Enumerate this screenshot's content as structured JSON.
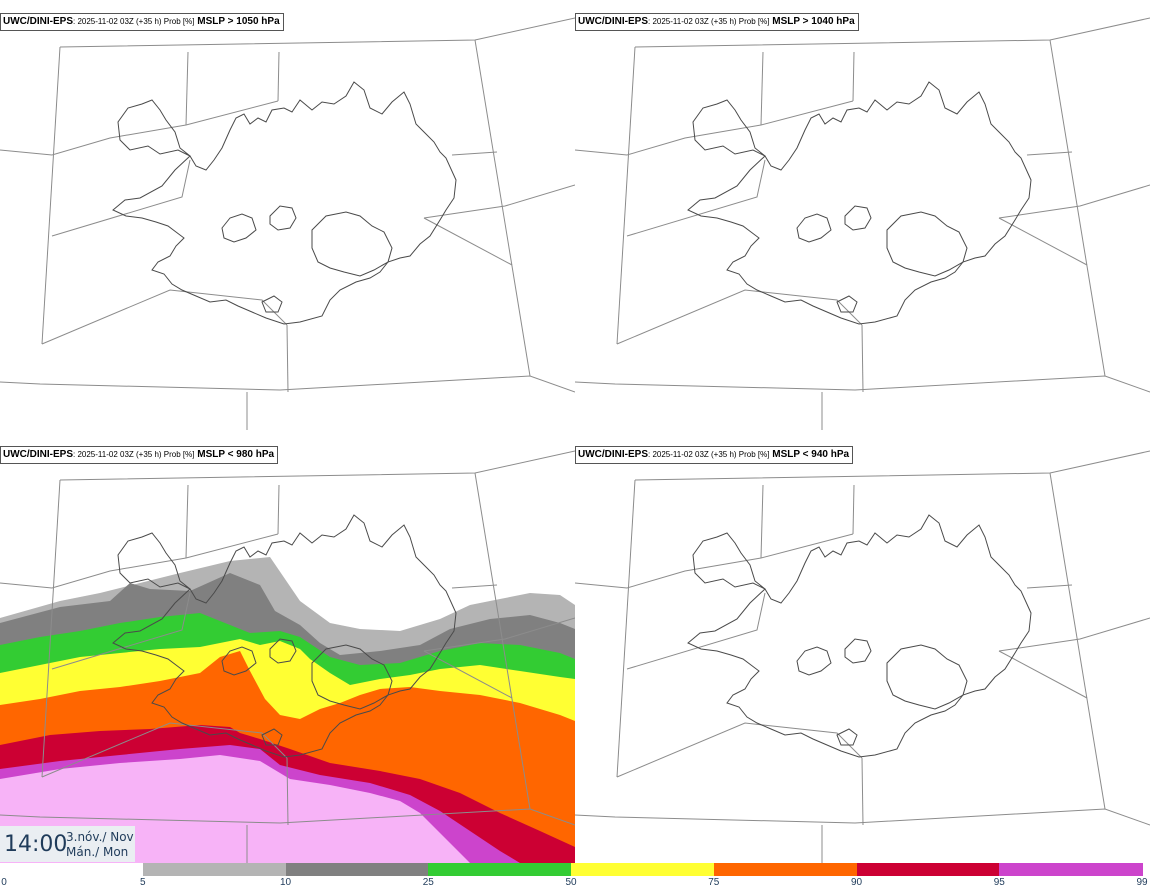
{
  "panels": [
    {
      "model": "UWC/DINI-EPS",
      "meta": ": 2025-11-02 03Z (+35 h) Prob [%]",
      "field": "MSLP > 1050 hPa"
    },
    {
      "model": "UWC/DINI-EPS",
      "meta": ": 2025-11-02 03Z (+35 h) Prob [%]",
      "field": "MSLP > 1040 hPa"
    },
    {
      "model": "UWC/DINI-EPS",
      "meta": ": 2025-11-02 03Z (+35 h) Prob [%]",
      "field": "MSLP < 980 hPa"
    },
    {
      "model": "UWC/DINI-EPS",
      "meta": ": 2025-11-02 03Z (+35 h) Prob [%]",
      "field": "MSLP < 940 hPa"
    }
  ],
  "valid_time": {
    "time": "14:00",
    "date_line1": "3.nóv./ Nov",
    "date_line2": "Mán./ Mon"
  },
  "legend": {
    "ticks": [
      "0",
      "5",
      "10",
      "25",
      "50",
      "75",
      "90",
      "95",
      "99"
    ],
    "colors": [
      "#ffffff",
      "#b4b4b4",
      "#808080",
      "#33cc33",
      "#ffff33",
      "#ff6600",
      "#cc0033",
      "#cc44cc",
      "#f7b3f7"
    ]
  },
  "map": {
    "coastline_color": "#4a4a4a",
    "grid_color": "#8c8c8c"
  }
}
